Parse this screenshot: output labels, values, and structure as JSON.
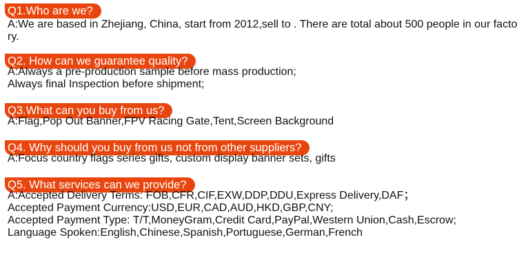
{
  "faq": [
    {
      "q": "Q1.Who are we?",
      "a": [
        "A:We are based in Zhejiang, China, start from 2012,sell to . There are total about 500 people in our facto-",
        "ry."
      ]
    },
    {
      "q": "Q2. How can we guarantee quality?",
      "a": [
        "A:Always a pre-production sample before mass production;",
        "Always final Inspection before shipment;"
      ]
    },
    {
      "q": "Q3.What can you buy from us?",
      "a": [
        "A:Flag,Pop Out Banner,FPV Racing Gate,Tent,Screen Background"
      ]
    },
    {
      "q": "Q4. Why should you buy from us not from other suppliers?",
      "a": [
        "A:Focus country flags series gifts, custom display banner sets, gifts"
      ]
    },
    {
      "q": "Q5. What services can we provide?",
      "a": [
        "A:Accepted Delivery Terms: FOB,CFR,CIF,EXW,DDP,DDU,Express Delivery,DAF；",
        "Accepted Payment Currency:USD,EUR,CAD,AUD,HKD,GBP,CNY;",
        "Accepted Payment Type: T/T,MoneyGram,Credit Card,PayPal,Western Union,Cash,Escrow;",
        "Language Spoken:English,Chinese,Spanish,Portuguese,German,French"
      ]
    }
  ],
  "colors": {
    "badge": "#e8460e"
  }
}
